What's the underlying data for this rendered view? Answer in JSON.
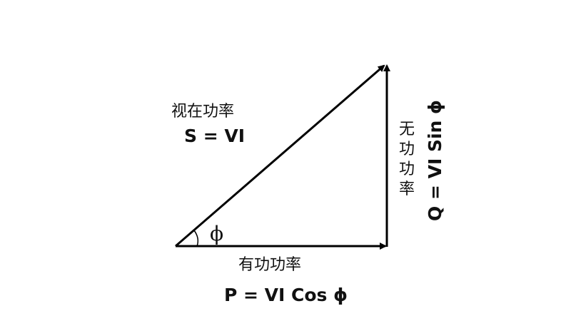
{
  "diagram": {
    "apparent_power": {
      "label": "视在功率",
      "formula": "S = VI"
    },
    "active_power": {
      "label": "有功功率",
      "formula": "P = VI Cos ϕ"
    },
    "reactive_power": {
      "label_chars": [
        "无",
        "功",
        "功",
        "率"
      ],
      "formula": "Q = VI Sin ϕ"
    },
    "angle_symbol": "ϕ",
    "line_color": "#000000"
  }
}
